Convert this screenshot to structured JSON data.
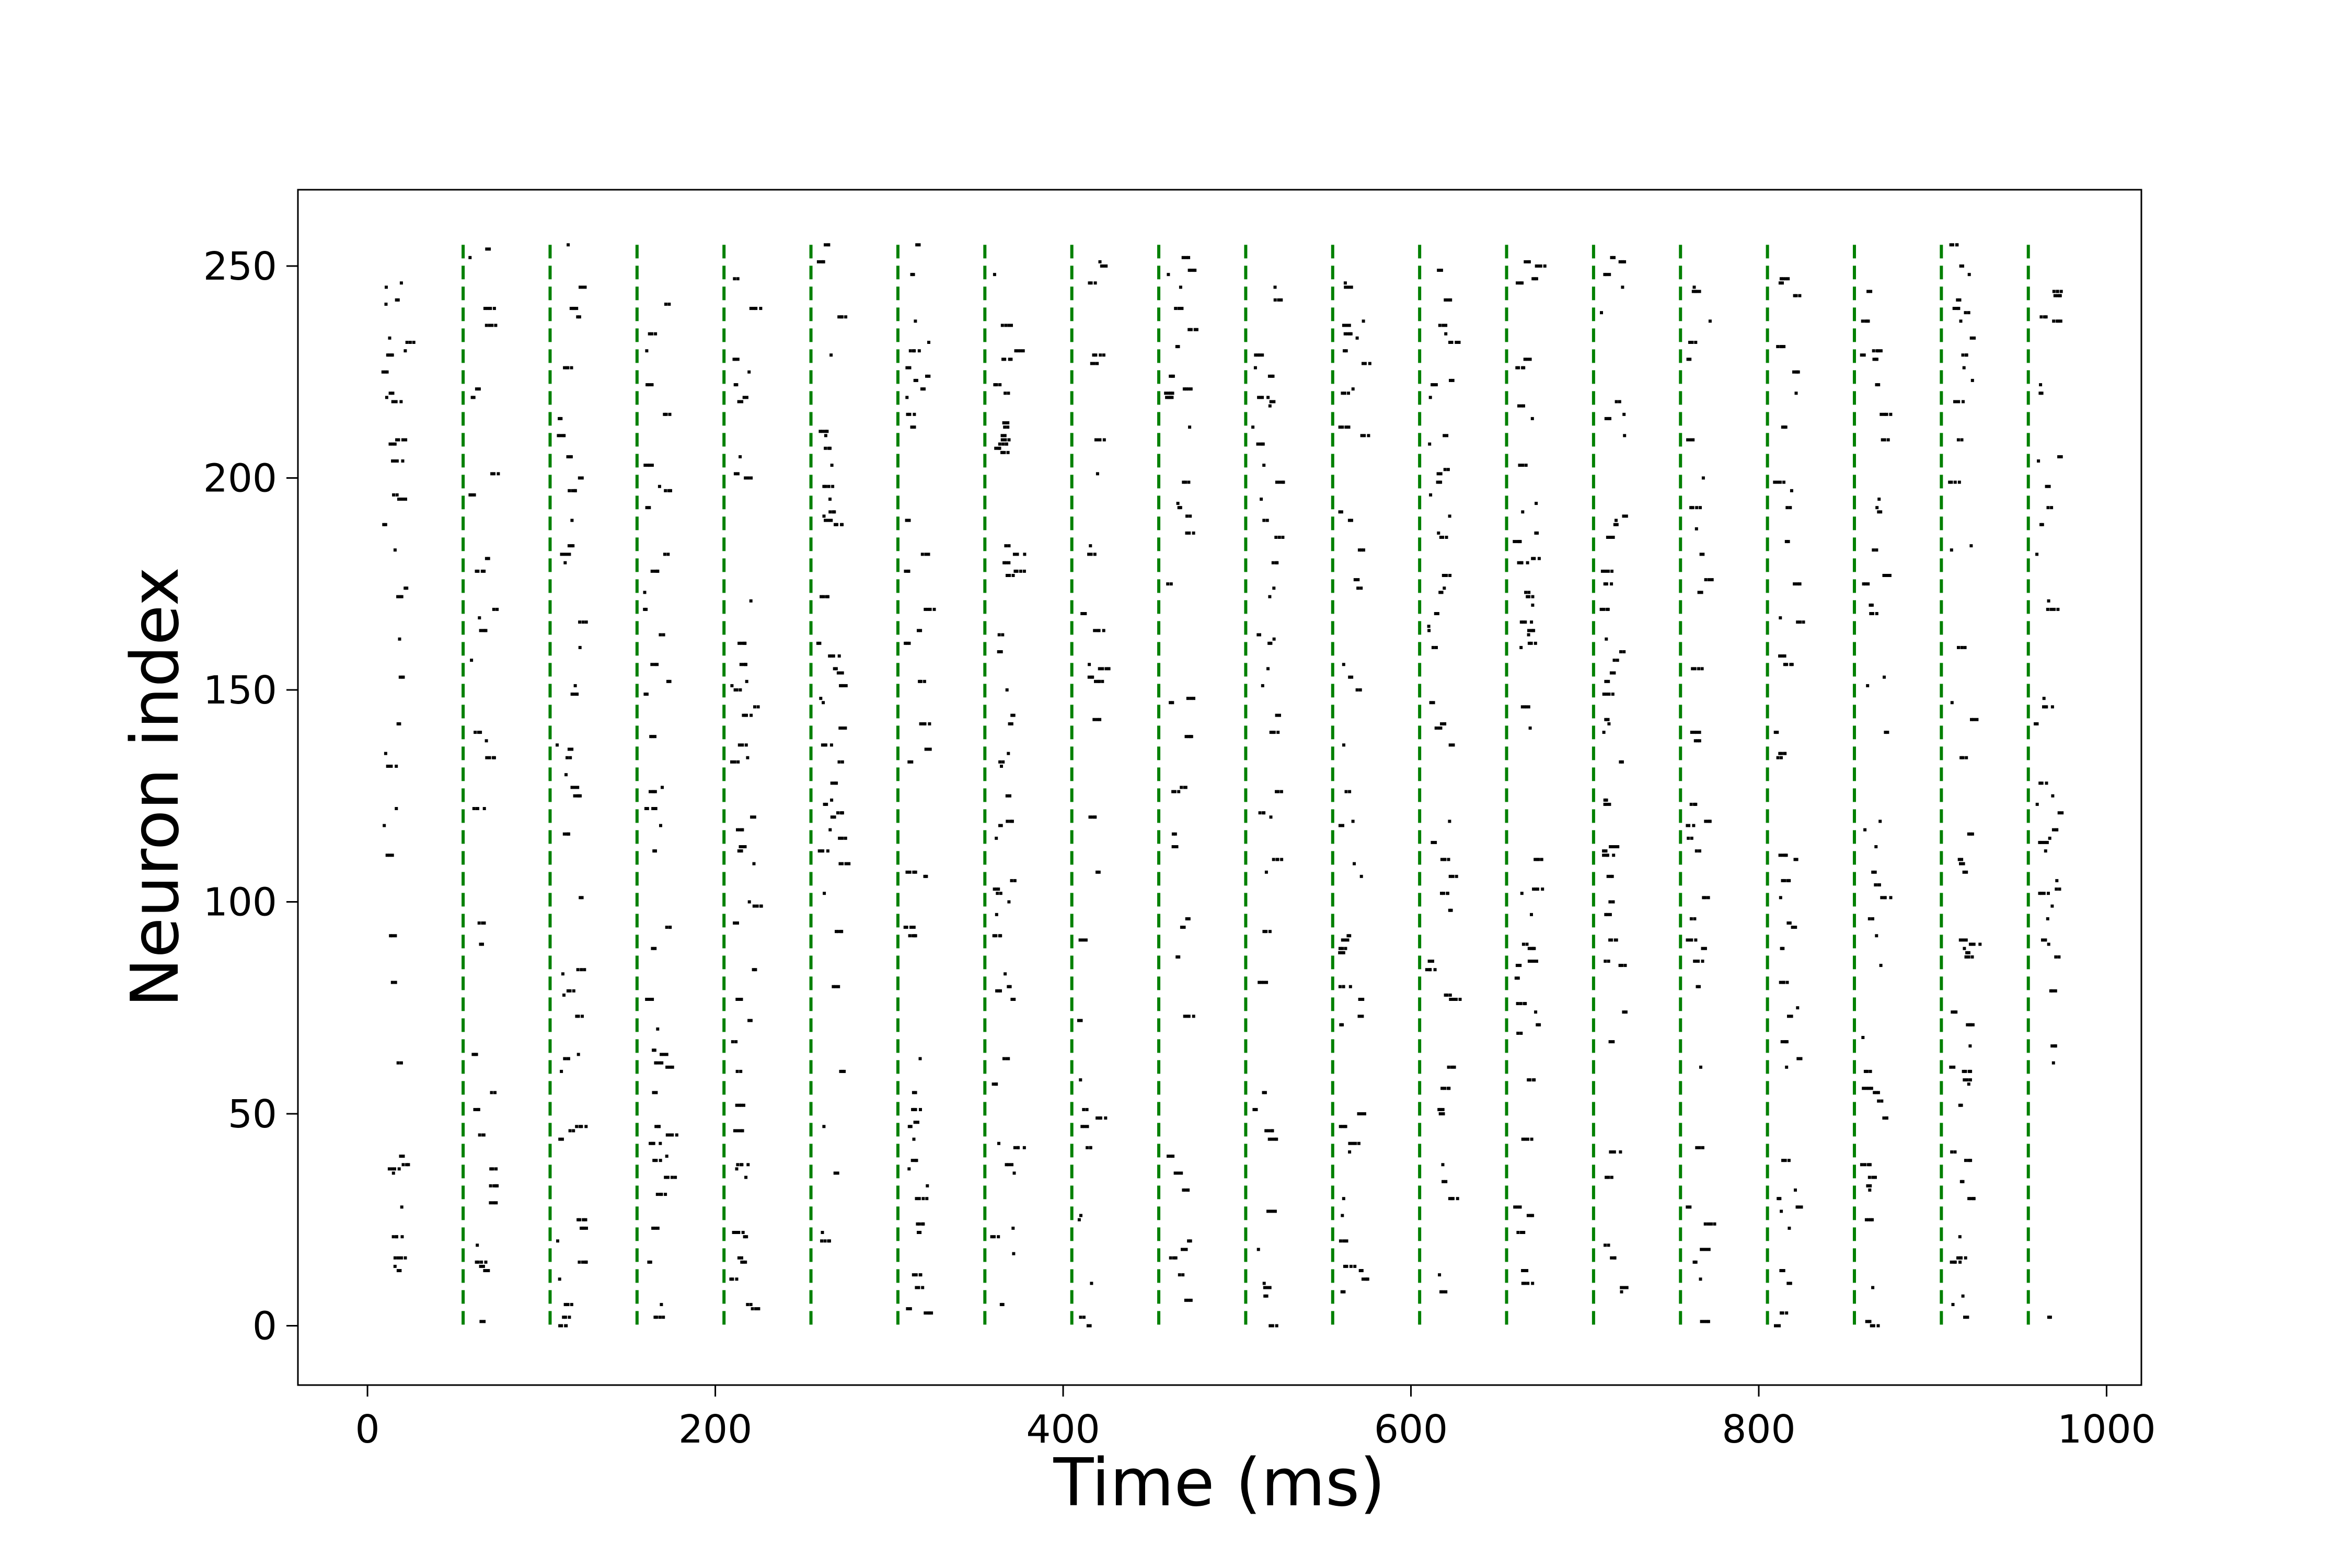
{
  "chart_data": {
    "type": "scatter",
    "title": "",
    "xlabel": "Time (ms)",
    "ylabel": "Neuron index",
    "xlim": [
      -40,
      1020
    ],
    "ylim": [
      -14,
      268
    ],
    "xticks": [
      0,
      200,
      400,
      600,
      800,
      1000
    ],
    "yticks": [
      0,
      50,
      100,
      150,
      200,
      250
    ],
    "grid": false,
    "legend": "none",
    "marker_color": "#000000",
    "stimulus_line_color": "#008000",
    "stimulus_onsets": [
      55,
      105,
      155,
      205,
      255,
      305,
      355,
      405,
      455,
      505,
      555,
      605,
      655,
      705,
      755,
      805,
      855,
      905,
      955
    ],
    "window_length": 20,
    "first_window_start": 8,
    "spike_neuron_range": [
      0,
      255
    ],
    "series": [
      {
        "name": "",
        "note": "spike raster: each point is (time ms, neuron index); points cluster in ~20 ms windows after each stimulus onset"
      }
    ]
  }
}
